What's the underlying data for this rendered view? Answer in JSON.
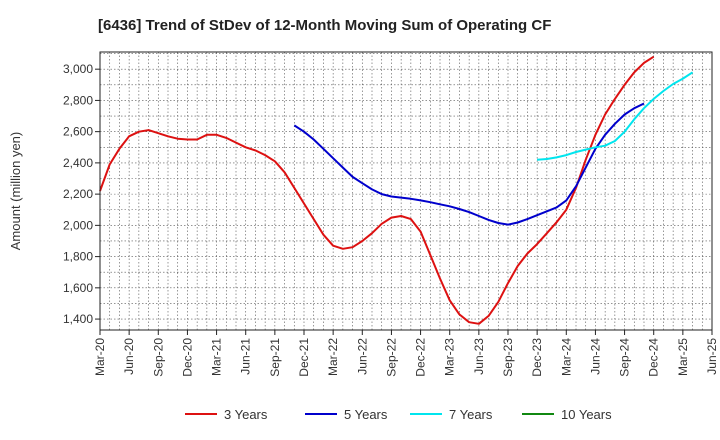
{
  "chart_data": {
    "type": "line",
    "title": "[6436]  Trend of StDev of 12-Month Moving Sum of Operating CF",
    "xlabel": "",
    "ylabel": "Amount (million yen)",
    "ylim": [
      1330,
      3110
    ],
    "yticks": [
      1400,
      1600,
      1800,
      2000,
      2200,
      2400,
      2600,
      2800,
      3000
    ],
    "ytick_labels": [
      "1,400",
      "1,600",
      "1,800",
      "2,000",
      "2,200",
      "2,400",
      "2,600",
      "2,800",
      "3,000"
    ],
    "xlim": [
      0,
      63
    ],
    "x_tick_labels": [
      "Mar-20",
      "Jun-20",
      "Sep-20",
      "Dec-20",
      "Mar-21",
      "Jun-21",
      "Sep-21",
      "Dec-21",
      "Mar-22",
      "Jun-22",
      "Sep-22",
      "Dec-22",
      "Mar-23",
      "Jun-23",
      "Sep-23",
      "Dec-23",
      "Mar-24",
      "Jun-24",
      "Sep-24",
      "Dec-24",
      "Mar-25",
      "Jun-25"
    ],
    "grid": true,
    "legend_position": "bottom",
    "series": [
      {
        "name": "3 Years",
        "color": "#dd1111",
        "x_start": 0,
        "values": [
          2220,
          2390,
          2490,
          2570,
          2600,
          2610,
          2590,
          2570,
          2555,
          2550,
          2550,
          2580,
          2580,
          2560,
          2530,
          2500,
          2480,
          2450,
          2410,
          2340,
          2240,
          2140,
          2040,
          1940,
          1870,
          1850,
          1860,
          1900,
          1950,
          2010,
          2050,
          2060,
          2040,
          1960,
          1810,
          1660,
          1520,
          1430,
          1380,
          1370,
          1420,
          1510,
          1630,
          1740,
          1820,
          1880,
          1950,
          2020,
          2100,
          2240,
          2420,
          2580,
          2710,
          2810,
          2900,
          2980,
          3040,
          3080
        ]
      },
      {
        "name": "5 Years",
        "color": "#0000cc",
        "x_start": 20,
        "values": [
          2640,
          2600,
          2550,
          2490,
          2430,
          2370,
          2310,
          2270,
          2230,
          2200,
          2185,
          2178,
          2170,
          2160,
          2148,
          2135,
          2122,
          2105,
          2085,
          2060,
          2035,
          2015,
          2005,
          2018,
          2040,
          2065,
          2090,
          2115,
          2160,
          2250,
          2370,
          2490,
          2580,
          2650,
          2710,
          2750,
          2780
        ]
      },
      {
        "name": "7 Years",
        "color": "#00e5ee",
        "x_start": 45,
        "values": [
          2420,
          2425,
          2435,
          2450,
          2470,
          2485,
          2500,
          2510,
          2540,
          2600,
          2680,
          2750,
          2810,
          2860,
          2905,
          2940,
          2980
        ]
      },
      {
        "name": "10 Years",
        "color": "#118811",
        "x_start": null,
        "values": []
      }
    ]
  }
}
